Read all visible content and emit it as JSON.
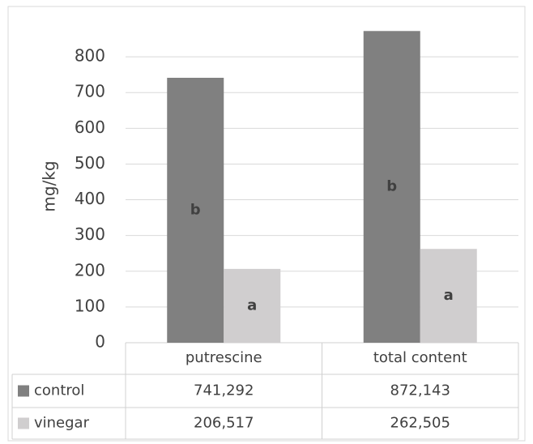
{
  "chart_data": {
    "type": "bar",
    "y_label": "mg/kg",
    "categories": [
      "putrescine",
      "total content"
    ],
    "series": [
      {
        "name": "control",
        "color": "#808080",
        "values": [
          741.292,
          872.143
        ],
        "value_labels": [
          "741,292",
          "872,143"
        ],
        "letters": [
          "b",
          "b"
        ]
      },
      {
        "name": "vinegar",
        "color": "#d0cecf",
        "values": [
          206.517,
          262.505
        ],
        "value_labels": [
          "206,517",
          "262,505"
        ],
        "letters": [
          "a",
          "a"
        ]
      }
    ],
    "ylim": [
      0,
      900
    ],
    "yticks": [
      0,
      100,
      200,
      300,
      400,
      500,
      600,
      700,
      800
    ],
    "grid": true
  }
}
